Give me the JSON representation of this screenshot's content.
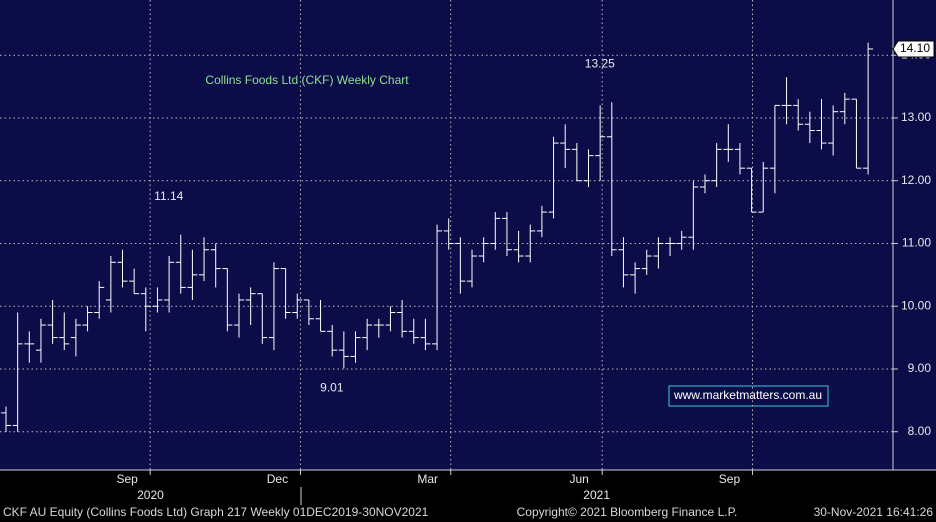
{
  "chart_data": {
    "type": "ohlc",
    "title": "Collins Foods Ltd (CKF) Weekly Chart",
    "color": "#ffffff",
    "title_color": "#8fe08f",
    "background": "#0c0c48",
    "open": [
      8.3,
      8.1,
      9.4,
      9.3,
      9.7,
      9.5,
      9.5,
      9.7,
      9.9,
      10.1,
      10.7,
      10.4,
      10.2,
      10.0,
      10.1,
      10.7,
      10.3,
      10.5,
      10.9,
      10.6,
      9.7,
      10.1,
      10.2,
      9.5,
      10.6,
      9.9,
      10.1,
      9.8,
      9.6,
      9.3,
      9.2,
      9.5,
      9.7,
      9.7,
      9.9,
      9.6,
      9.5,
      9.4,
      11.2,
      11.0,
      10.4,
      10.8,
      11.0,
      11.4,
      10.9,
      10.8,
      11.2,
      11.5,
      12.6,
      12.5,
      12.0,
      12.4,
      12.7,
      10.9,
      10.5,
      10.6,
      10.8,
      11.0,
      11.0,
      11.1,
      11.9,
      12.0,
      12.5,
      12.5,
      12.2,
      11.5,
      12.2,
      13.2,
      13.2,
      12.9,
      12.8,
      12.6,
      13.1,
      13.3,
      12.2
    ],
    "high": [
      8.4,
      9.9,
      9.6,
      9.8,
      10.1,
      9.9,
      9.8,
      10.0,
      10.4,
      10.8,
      10.9,
      10.6,
      10.3,
      10.3,
      10.8,
      11.14,
      10.9,
      11.1,
      11.0,
      10.6,
      10.2,
      10.3,
      10.2,
      10.7,
      10.6,
      10.2,
      10.1,
      10.1,
      9.7,
      9.6,
      9.6,
      9.8,
      9.8,
      10.0,
      10.1,
      9.8,
      9.8,
      11.3,
      11.4,
      11.1,
      10.9,
      11.1,
      11.5,
      11.5,
      11.2,
      11.3,
      11.6,
      12.7,
      12.9,
      12.6,
      12.5,
      13.2,
      13.25,
      11.1,
      10.7,
      10.9,
      11.1,
      11.1,
      11.2,
      12.0,
      12.1,
      12.6,
      12.9,
      12.6,
      12.2,
      12.3,
      13.2,
      13.65,
      13.3,
      13.1,
      13.3,
      13.2,
      13.4,
      13.3,
      14.2
    ],
    "low": [
      8.0,
      8.0,
      9.1,
      9.1,
      9.4,
      9.3,
      9.2,
      9.6,
      9.8,
      9.9,
      10.3,
      10.2,
      9.6,
      9.9,
      9.9,
      10.2,
      10.1,
      10.4,
      10.3,
      9.6,
      9.5,
      9.7,
      9.4,
      9.3,
      9.8,
      9.8,
      9.7,
      9.6,
      9.2,
      9.01,
      9.1,
      9.3,
      9.5,
      9.6,
      9.5,
      9.4,
      9.3,
      9.3,
      10.9,
      10.2,
      10.3,
      10.7,
      10.9,
      10.8,
      10.7,
      10.7,
      11.1,
      11.4,
      12.2,
      12.0,
      11.9,
      12.0,
      10.8,
      10.3,
      10.2,
      10.5,
      10.6,
      10.8,
      10.9,
      10.9,
      11.8,
      11.9,
      12.3,
      12.1,
      11.5,
      11.5,
      11.8,
      12.9,
      12.8,
      12.6,
      12.5,
      12.4,
      12.9,
      12.2,
      12.1
    ],
    "close": [
      8.1,
      9.4,
      9.4,
      9.7,
      9.5,
      9.4,
      9.7,
      9.9,
      10.3,
      10.7,
      10.4,
      10.2,
      10.0,
      10.1,
      10.7,
      10.3,
      10.5,
      10.9,
      10.6,
      9.7,
      10.1,
      10.2,
      9.5,
      10.6,
      9.9,
      10.1,
      9.8,
      9.6,
      9.3,
      9.2,
      9.5,
      9.7,
      9.7,
      9.9,
      9.6,
      9.5,
      9.4,
      11.2,
      11.0,
      10.4,
      10.8,
      11.0,
      11.4,
      10.9,
      10.8,
      11.2,
      11.5,
      12.6,
      12.5,
      12.0,
      12.4,
      12.7,
      10.9,
      10.5,
      10.6,
      10.8,
      11.0,
      11.0,
      11.1,
      11.9,
      12.0,
      12.5,
      12.5,
      12.2,
      11.5,
      12.2,
      13.2,
      13.2,
      12.9,
      12.8,
      12.6,
      13.1,
      13.3,
      12.2,
      14.1
    ],
    "ylim": [
      7.39,
      14.88
    ],
    "yticks": [
      {
        "value": 8,
        "label": "8.00"
      },
      {
        "value": 9,
        "label": "9.00"
      },
      {
        "value": 10,
        "label": "10.00"
      },
      {
        "value": 11,
        "label": "11.00"
      },
      {
        "value": 12,
        "label": "12.00"
      },
      {
        "value": 13,
        "label": "13.00"
      },
      {
        "value": 14,
        "label": "14.00"
      }
    ],
    "xticks": [
      {
        "value": 10.4,
        "label": "Sep"
      },
      {
        "value": 23.3,
        "label": "Dec"
      },
      {
        "value": 36.2,
        "label": "Mar"
      },
      {
        "value": 49.2,
        "label": "Jun"
      },
      {
        "value": 62.1,
        "label": "Sep"
      }
    ],
    "year_ticks": [
      {
        "value": 12.4,
        "label": "2020"
      },
      {
        "value": 50.7,
        "label": "2021"
      }
    ],
    "grid": true,
    "last_price": {
      "value": 14.1,
      "label": "14.10"
    },
    "extreme_labels": [
      13.25,
      11.14,
      9.01
    ],
    "watermark": "www.marketmatters.com.au",
    "footer": {
      "left": "CKF AU Equity (Collins Foods Ltd) Graph 217  Weekly 01DEC2019-30NOV2021",
      "center": "Copyright© 2021 Bloomberg Finance L.P.",
      "right": "30-Nov-2021 16:41:26"
    }
  }
}
